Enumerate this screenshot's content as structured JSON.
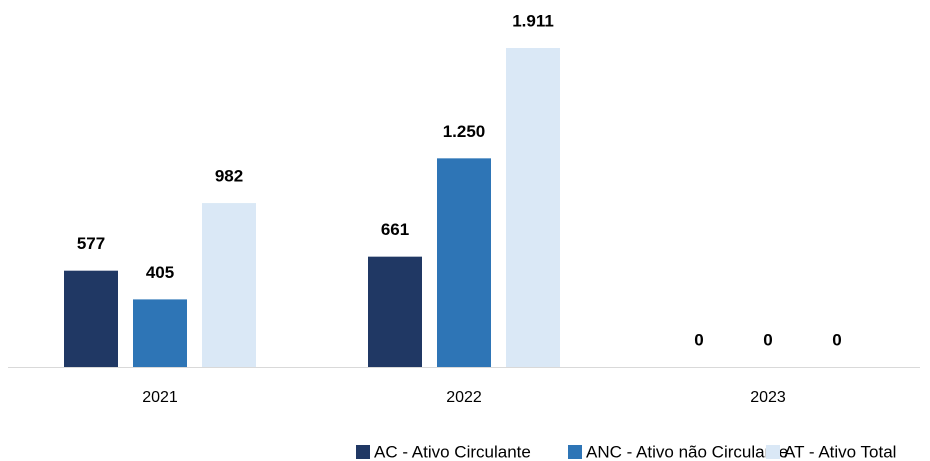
{
  "chart_data": {
    "type": "bar",
    "categories": [
      "2021",
      "2022",
      "2023"
    ],
    "series": [
      {
        "name": "AC - Ativo Circulante",
        "color": "#203864",
        "values": [
          577,
          661,
          0
        ],
        "value_labels": [
          "577",
          "661",
          "0"
        ]
      },
      {
        "name": "ANC - Ativo não Circulante",
        "color": "#2e75b6",
        "values": [
          405,
          1250,
          0
        ],
        "value_labels": [
          "405",
          "1.250",
          "0"
        ]
      },
      {
        "name": "AT - Ativo Total",
        "color": "#dae8f6",
        "values": [
          982,
          1911,
          0
        ],
        "value_labels": [
          "982",
          "1.911",
          "0"
        ]
      }
    ]
  }
}
